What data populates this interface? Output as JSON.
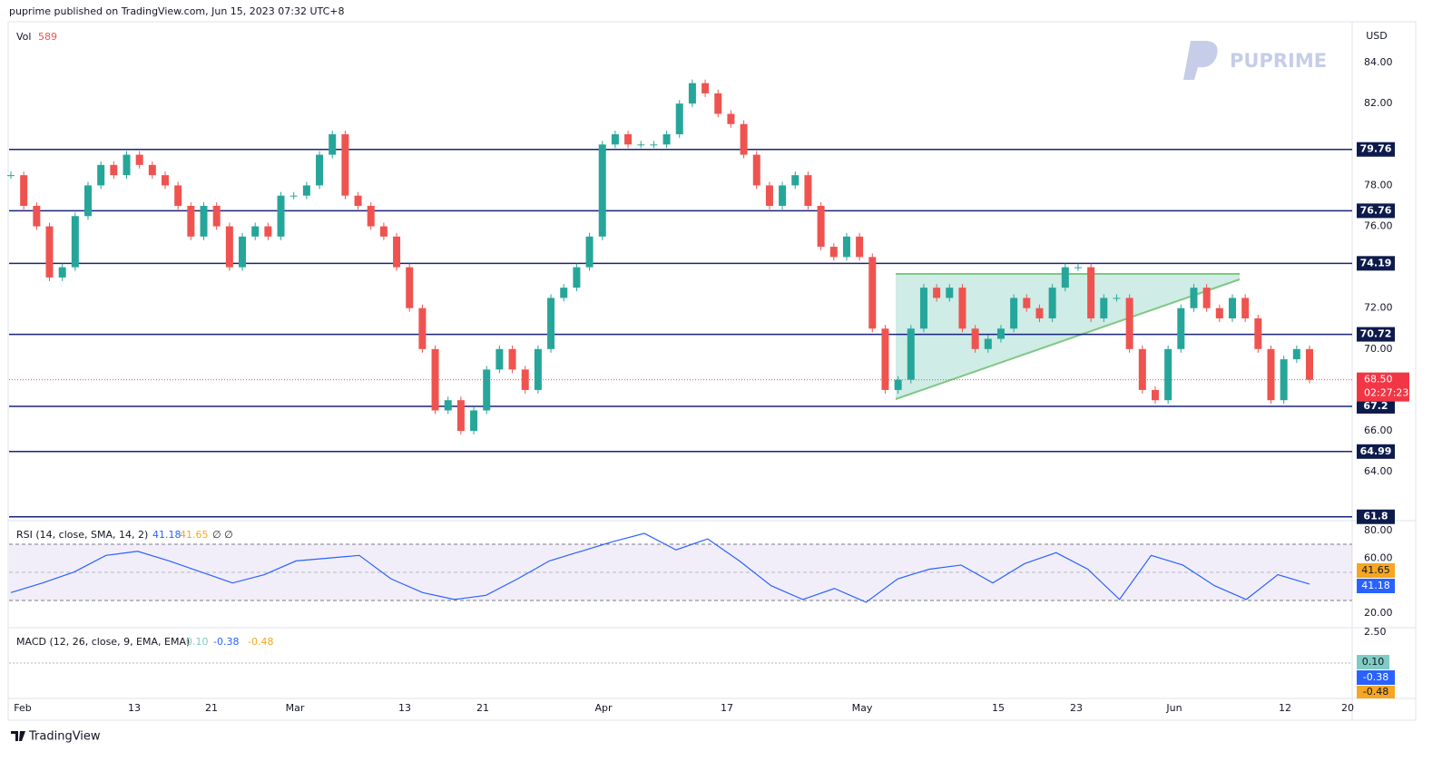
{
  "header": "puprime published on TradingView.com, Jun 15, 2023 07:32 UTC+8",
  "logo": "PUPRIME",
  "footer": "TradingView",
  "chart_data": {
    "type": "candlestick",
    "currency": "USD",
    "volume": {
      "label": "Vol",
      "value": 589
    },
    "ylim": [
      61.7,
      86.0
    ],
    "yticks": [
      {
        "value": 84,
        "label": "84.00"
      },
      {
        "value": 82,
        "label": "82.00"
      },
      {
        "value": 78,
        "label": "78.00"
      },
      {
        "value": 76,
        "label": "76.00"
      },
      {
        "value": 72,
        "label": "72.00"
      },
      {
        "value": 70,
        "label": "70.00"
      },
      {
        "value": 66,
        "label": "66.00"
      },
      {
        "value": 64,
        "label": "64.00"
      }
    ],
    "levels": [
      79.76,
      76.76,
      74.19,
      70.72,
      67.2,
      64.99,
      61.8
    ],
    "last": {
      "value": 68.5,
      "label": "68.50",
      "countdown": "02:27:23"
    },
    "closes": [
      78.5,
      77,
      76,
      73.5,
      74,
      76.5,
      78,
      79,
      78.5,
      79.5,
      79,
      78.5,
      78,
      77,
      75.5,
      77,
      76,
      74,
      75.5,
      76,
      75.5,
      77.5,
      77.5,
      78,
      79.5,
      80.5,
      77.5,
      77,
      76,
      75.5,
      74,
      72,
      70,
      67,
      67.5,
      66,
      67,
      69,
      70,
      69,
      68,
      70,
      72.5,
      73,
      74,
      75.5,
      80,
      80.5,
      80,
      80,
      80,
      80.5,
      82,
      83,
      82.5,
      81.5,
      81,
      79.5,
      78,
      77,
      78,
      78.5,
      77,
      75,
      74.5,
      75.5,
      74.5,
      71,
      68,
      68.5,
      71,
      73,
      72.5,
      73,
      71,
      70,
      70.5,
      71,
      72.5,
      72,
      71.5,
      73,
      74,
      74,
      71.5,
      72.5,
      72.5,
      70,
      68,
      67.5,
      70,
      72,
      73,
      72,
      71.5,
      72.5,
      71.5,
      70,
      67.5,
      69.5,
      70,
      68.5
    ],
    "dates": [
      "Feb",
      "13",
      "21",
      "Mar",
      "13",
      "21",
      "Apr",
      "17",
      "May",
      "15",
      "23",
      "Jun",
      "12",
      "20"
    ],
    "rsi": {
      "legend": "RSI (14, close, SMA, 14, 2)",
      "values": [
        41.18,
        41.65
      ],
      "extra": "∅ ∅",
      "ylim": [
        9.5,
        87.25
      ],
      "yticks": [
        {
          "value": 80,
          "label": "80.00"
        },
        {
          "value": 60,
          "label": "60.00"
        },
        {
          "value": 20,
          "label": "20.00"
        }
      ],
      "line": [
        35,
        42,
        50,
        62,
        65,
        58,
        50,
        42,
        48,
        58,
        60,
        62,
        45,
        35,
        30,
        33,
        45,
        58,
        65,
        72,
        78,
        66,
        74,
        58,
        40,
        30,
        38,
        28,
        45,
        52,
        55,
        42,
        56,
        64,
        52,
        30,
        62,
        55,
        40,
        30,
        48,
        41.18
      ]
    },
    "macd": {
      "legend": "MACD (12, 26, close, 9, EMA, EMA)",
      "values": [
        0.1,
        -0.38,
        -0.48
      ],
      "value_labels": [
        "0.10",
        "-0.38",
        "-0.48"
      ],
      "ytick": {
        "value": 2.5,
        "label": "2.50"
      }
    }
  }
}
